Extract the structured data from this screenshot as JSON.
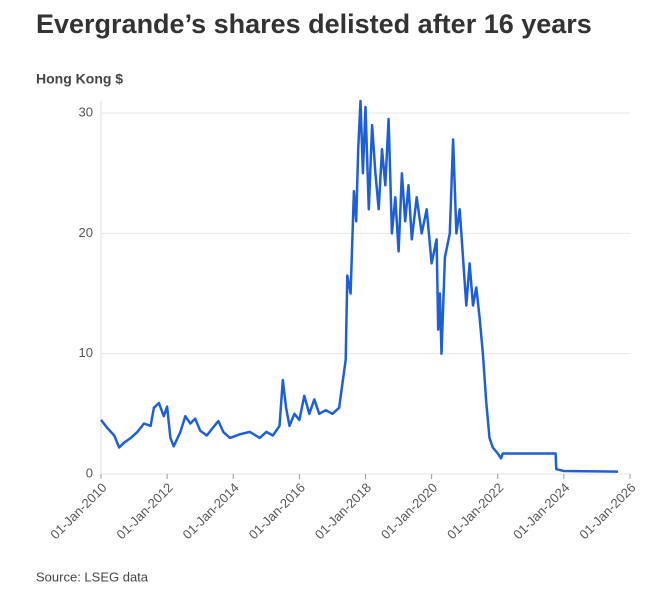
{
  "chart_data": {
    "type": "line",
    "title": "Evergrande’s shares delisted after 16 years",
    "y_label": "Hong Kong $",
    "source": "Source: LSEG data",
    "x": [
      2010.0,
      2010.2,
      2010.4,
      2010.55,
      2010.7,
      2010.9,
      2011.1,
      2011.3,
      2011.5,
      2011.6,
      2011.75,
      2011.9,
      2012.0,
      2012.1,
      2012.2,
      2012.4,
      2012.55,
      2012.7,
      2012.85,
      2013.0,
      2013.2,
      2013.4,
      2013.55,
      2013.7,
      2013.9,
      2014.2,
      2014.5,
      2014.8,
      2015.0,
      2015.2,
      2015.4,
      2015.5,
      2015.6,
      2015.7,
      2015.85,
      2016.0,
      2016.15,
      2016.3,
      2016.45,
      2016.6,
      2016.8,
      2017.0,
      2017.2,
      2017.3,
      2017.4,
      2017.45,
      2017.55,
      2017.65,
      2017.72,
      2017.78,
      2017.85,
      2017.92,
      2018.0,
      2018.1,
      2018.2,
      2018.3,
      2018.4,
      2018.5,
      2018.6,
      2018.7,
      2018.8,
      2018.9,
      2019.0,
      2019.1,
      2019.2,
      2019.3,
      2019.4,
      2019.55,
      2019.7,
      2019.85,
      2020.0,
      2020.15,
      2020.2,
      2020.25,
      2020.3,
      2020.4,
      2020.55,
      2020.65,
      2020.75,
      2020.85,
      2020.95,
      2021.05,
      2021.15,
      2021.25,
      2021.35,
      2021.45,
      2021.55,
      2021.65,
      2021.75,
      2021.85,
      2022.0,
      2022.1,
      2022.15,
      2023.3,
      2023.75,
      2023.77,
      2024.0,
      2025.64
    ],
    "series": [
      {
        "name": "Evergrande",
        "color": "#1f5fd6",
        "values": [
          4.5,
          3.8,
          3.2,
          2.2,
          2.6,
          3.0,
          3.5,
          4.2,
          4.0,
          5.5,
          5.9,
          4.8,
          5.6,
          3.0,
          2.3,
          3.5,
          4.8,
          4.2,
          4.6,
          3.6,
          3.2,
          3.9,
          4.4,
          3.5,
          3.0,
          3.3,
          3.5,
          3.0,
          3.5,
          3.2,
          4.0,
          7.8,
          5.5,
          4.0,
          5.0,
          4.5,
          6.5,
          5.0,
          6.2,
          5.0,
          5.3,
          5.0,
          5.5,
          7.5,
          9.5,
          16.5,
          15,
          23.5,
          21,
          27,
          31,
          25,
          30.5,
          22,
          29,
          25,
          22,
          27,
          24,
          29.5,
          20,
          23,
          18.5,
          25,
          21,
          24,
          19.5,
          23,
          20,
          22,
          17.5,
          19.5,
          12,
          15,
          10,
          18,
          20,
          27.8,
          20,
          22,
          18,
          14,
          17.5,
          14,
          15.5,
          13,
          10,
          6,
          3,
          2.2,
          1.7,
          1.3,
          1.7,
          1.7,
          1.7,
          0.4,
          0.25,
          0.2
        ]
      }
    ],
    "xlim": [
      2010,
      2026
    ],
    "xticks": [
      {
        "value": 2010,
        "label": "01-Jan-2010"
      },
      {
        "value": 2012,
        "label": "01-Jan-2012"
      },
      {
        "value": 2014,
        "label": "01-Jan-2014"
      },
      {
        "value": 2016,
        "label": "01-Jan-2016"
      },
      {
        "value": 2018,
        "label": "01-Jan-2018"
      },
      {
        "value": 2020,
        "label": "01-Jan-2020"
      },
      {
        "value": 2022,
        "label": "01-Jan-2022"
      },
      {
        "value": 2024,
        "label": "01-Jan-2024"
      },
      {
        "value": 2026,
        "label": "01-Jan-2026"
      }
    ],
    "ylim": [
      0,
      31
    ],
    "yticks": [
      0,
      10,
      20,
      30
    ],
    "grid": true
  }
}
